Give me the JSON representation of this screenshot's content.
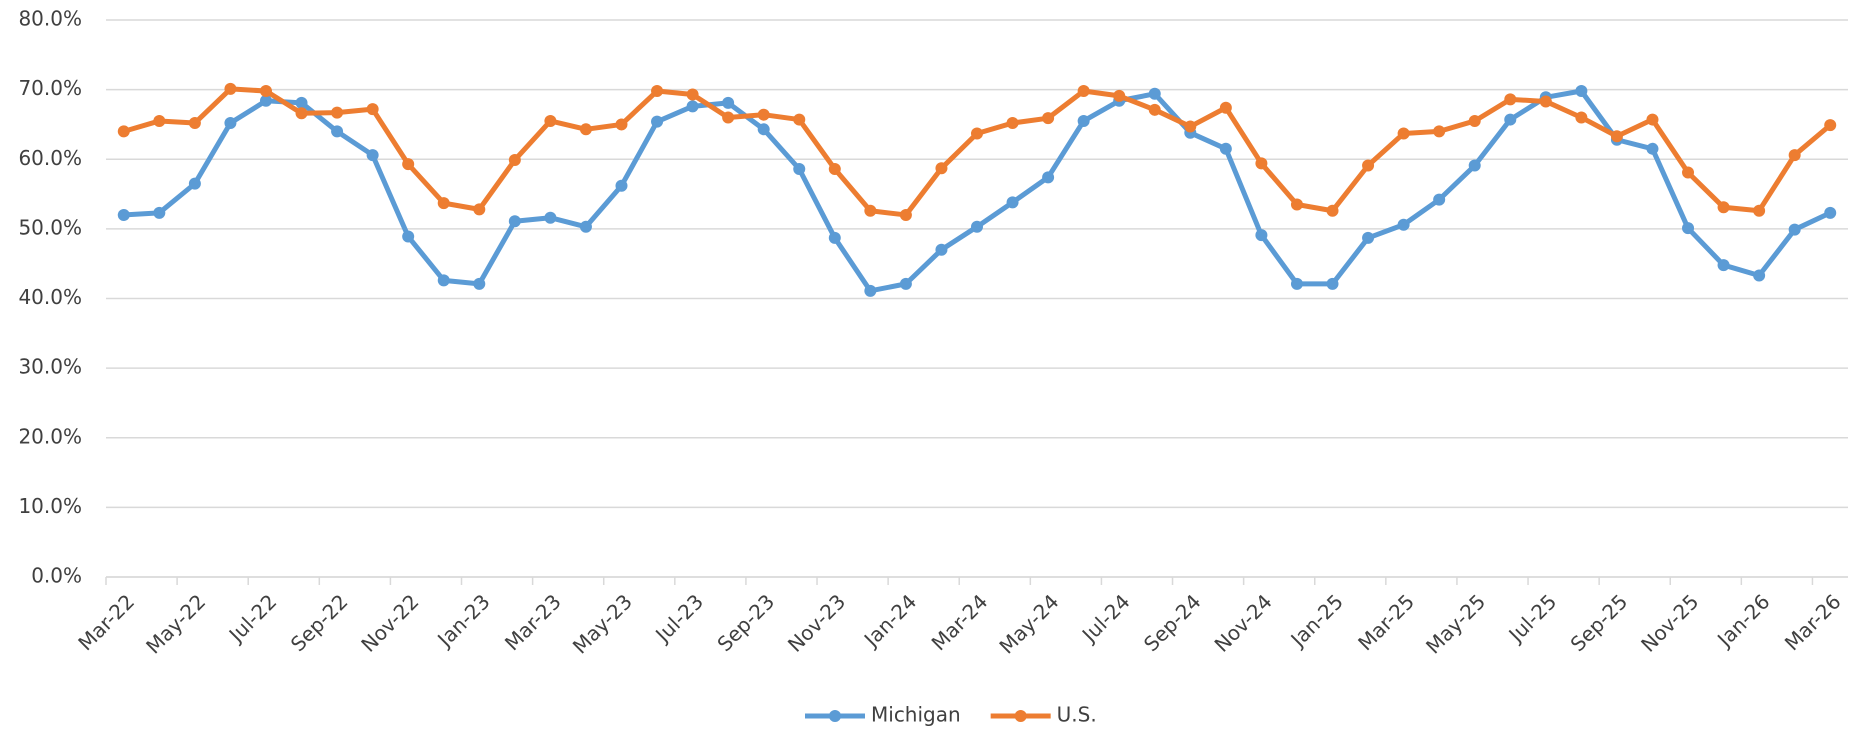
{
  "chart_data": {
    "type": "line",
    "categories": [
      "Mar-22",
      null,
      "May-22",
      null,
      "Jul-22",
      null,
      "Sep-22",
      null,
      "Nov-22",
      null,
      "Jan-23",
      null,
      "Mar-23",
      null,
      "May-23",
      null,
      "Jul-23",
      null,
      "Sep-23",
      null,
      "Nov-23",
      null,
      "Jan-24",
      null,
      "Mar-24",
      null,
      "May-24",
      null,
      "Jul-24",
      null,
      "Sep-24",
      null,
      "Nov-24",
      null,
      "Jan-25",
      null,
      "Mar-25",
      null,
      "May-25",
      null,
      "Jul-25",
      null,
      "Sep-25",
      null,
      "Nov-25",
      null,
      "Jan-26",
      null,
      "Mar-26"
    ],
    "series": [
      {
        "name": "Michigan",
        "color": "#5b9bd5",
        "values": [
          52.0,
          52.3,
          56.5,
          65.2,
          68.4,
          68.1,
          64.0,
          60.6,
          48.9,
          42.6,
          42.1,
          51.1,
          51.6,
          50.3,
          56.2,
          65.4,
          67.6,
          68.1,
          64.3,
          58.6,
          48.7,
          41.1,
          42.1,
          47.0,
          50.3,
          53.8,
          57.4,
          65.5,
          68.4,
          69.4,
          63.8,
          61.5,
          49.1,
          42.1,
          42.1,
          48.7,
          50.6,
          54.2,
          59.1,
          65.7,
          68.9,
          69.8,
          62.8,
          61.5,
          50.1,
          44.8,
          43.3,
          49.9,
          52.3
        ]
      },
      {
        "name": "U.S.",
        "color": "#ed7d31",
        "values": [
          64.0,
          65.5,
          65.2,
          70.1,
          69.8,
          66.6,
          66.7,
          67.2,
          59.3,
          53.7,
          52.8,
          59.9,
          65.5,
          64.3,
          65.0,
          69.8,
          69.3,
          66.0,
          66.4,
          65.7,
          58.6,
          52.6,
          52.0,
          58.7,
          63.7,
          65.2,
          65.9,
          69.8,
          69.1,
          67.1,
          64.7,
          67.4,
          59.4,
          53.5,
          52.6,
          59.1,
          63.7,
          64.0,
          65.5,
          68.6,
          68.3,
          66.0,
          63.3,
          65.7,
          58.1,
          53.1,
          52.6,
          60.6,
          64.9
        ]
      }
    ],
    "ylim": [
      0,
      80
    ],
    "yticks": [
      {
        "value": 0,
        "label": "0.0%"
      },
      {
        "value": 10,
        "label": "10.0%"
      },
      {
        "value": 20,
        "label": "20.0%"
      },
      {
        "value": 30,
        "label": "30.0%"
      },
      {
        "value": 40,
        "label": "40.0%"
      },
      {
        "value": 50,
        "label": "50.0%"
      },
      {
        "value": 60,
        "label": "60.0%"
      },
      {
        "value": 70,
        "label": "70.0%"
      },
      {
        "value": 80,
        "label": "80.0%"
      }
    ],
    "grid": true,
    "legend": "bottom"
  }
}
